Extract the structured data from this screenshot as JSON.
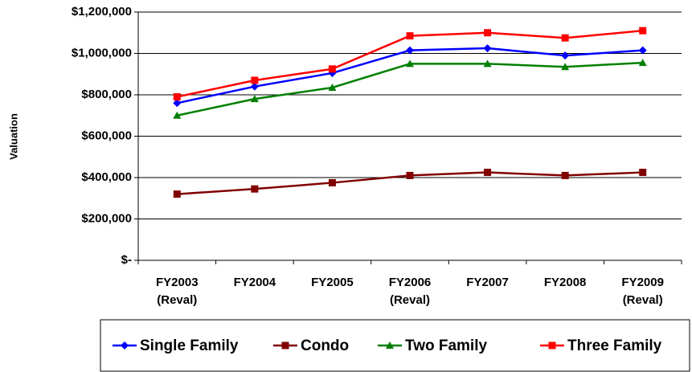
{
  "chart_data": {
    "type": "line",
    "y_label": "Valuation",
    "categories": [
      "FY2003 (Reval)",
      "FY2004",
      "FY2005",
      "FY2006 (Reval)",
      "FY2007",
      "FY2008",
      "FY2009 (Reval)"
    ],
    "series": [
      {
        "name": "Single Family",
        "color": "#0000FF",
        "marker": "diamond",
        "values": [
          760000,
          840000,
          905000,
          1015000,
          1025000,
          990000,
          1015000
        ]
      },
      {
        "name": "Condo",
        "color": "#800000",
        "marker": "square",
        "values": [
          320000,
          345000,
          375000,
          410000,
          425000,
          410000,
          425000
        ]
      },
      {
        "name": "Two Family",
        "color": "#008000",
        "marker": "triangle",
        "values": [
          700000,
          780000,
          835000,
          950000,
          950000,
          935000,
          955000
        ]
      },
      {
        "name": "Three Family",
        "color": "#FF0000",
        "marker": "square",
        "values": [
          790000,
          870000,
          925000,
          1085000,
          1100000,
          1075000,
          1110000
        ]
      }
    ],
    "ylim": [
      0,
      1200000
    ],
    "yticks": [
      {
        "value": 0,
        "label": "$-"
      },
      {
        "value": 200000,
        "label": "$200,000"
      },
      {
        "value": 400000,
        "label": "$400,000"
      },
      {
        "value": 600000,
        "label": "$600,000"
      },
      {
        "value": 800000,
        "label": "$800,000"
      },
      {
        "value": 1000000,
        "label": "$1,000,000"
      },
      {
        "value": 1200000,
        "label": "$1,200,000"
      }
    ],
    "grid": true,
    "legend": "bottom"
  }
}
